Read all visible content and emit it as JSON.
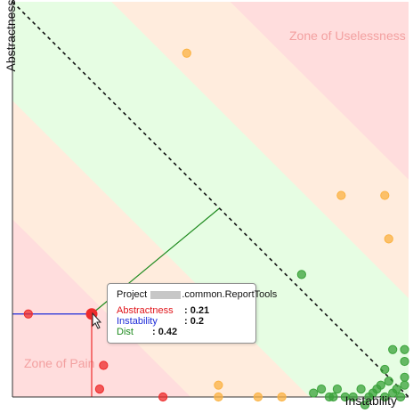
{
  "chart_data": {
    "type": "scatter",
    "xlabel": "Instability",
    "ylabel": "Abstractness",
    "xlim": [
      0,
      1
    ],
    "ylim": [
      0,
      1
    ],
    "zones": [
      {
        "name": "Zone of Uselessness",
        "color": "#ffdddd"
      },
      {
        "name": "Zone of Pain",
        "color": "#ffdddd"
      }
    ],
    "band_colors": [
      "#ffdddd",
      "#ffecdd",
      "#e6fde3",
      "#ffecdd",
      "#ffdddd"
    ],
    "main_sequence": {
      "from": [
        0,
        1
      ],
      "to": [
        1,
        0
      ]
    },
    "points": [
      {
        "x": 0.44,
        "y": 0.87,
        "color": "orange"
      },
      {
        "x": 0.83,
        "y": 0.51,
        "color": "orange"
      },
      {
        "x": 0.94,
        "y": 0.51,
        "color": "orange"
      },
      {
        "x": 0.95,
        "y": 0.4,
        "color": "orange"
      },
      {
        "x": 0.52,
        "y": 0.03,
        "color": "orange"
      },
      {
        "x": 0.52,
        "y": 0.0,
        "color": "orange"
      },
      {
        "x": 0.62,
        "y": 0.0,
        "color": "orange"
      },
      {
        "x": 0.68,
        "y": 0.0,
        "color": "orange"
      },
      {
        "x": 0.38,
        "y": 0.0,
        "color": "red"
      },
      {
        "x": 0.04,
        "y": 0.21,
        "color": "red"
      },
      {
        "x": 0.23,
        "y": 0.08,
        "color": "red"
      },
      {
        "x": 0.22,
        "y": 0.02,
        "color": "red"
      },
      {
        "x": 0.2,
        "y": 0.21,
        "color": "red",
        "selected": true
      },
      {
        "x": 0.73,
        "y": 0.31,
        "color": "green"
      },
      {
        "x": 0.76,
        "y": 0.01,
        "color": "green"
      },
      {
        "x": 0.78,
        "y": 0.02,
        "color": "green"
      },
      {
        "x": 0.8,
        "y": 0.0,
        "color": "green"
      },
      {
        "x": 0.81,
        "y": 0.0,
        "color": "green"
      },
      {
        "x": 0.82,
        "y": 0.02,
        "color": "green"
      },
      {
        "x": 0.84,
        "y": 0.0,
        "color": "green"
      },
      {
        "x": 0.86,
        "y": 0.0,
        "color": "green"
      },
      {
        "x": 0.88,
        "y": 0.02,
        "color": "green"
      },
      {
        "x": 0.89,
        "y": -0.03,
        "color": "green"
      },
      {
        "x": 0.9,
        "y": 0.0,
        "color": "green"
      },
      {
        "x": 0.91,
        "y": 0.01,
        "color": "green"
      },
      {
        "x": 0.92,
        "y": 0.02,
        "color": "green"
      },
      {
        "x": 0.93,
        "y": 0.03,
        "color": "green"
      },
      {
        "x": 0.94,
        "y": 0.0,
        "color": "green"
      },
      {
        "x": 0.95,
        "y": 0.04,
        "color": "green"
      },
      {
        "x": 0.96,
        "y": 0.01,
        "color": "green"
      },
      {
        "x": 0.97,
        "y": 0.02,
        "color": "green"
      },
      {
        "x": 0.98,
        "y": 0.0,
        "color": "green"
      },
      {
        "x": 0.99,
        "y": 0.03,
        "color": "green"
      },
      {
        "x": 0.94,
        "y": 0.07,
        "color": "green"
      },
      {
        "x": 0.96,
        "y": 0.12,
        "color": "green"
      },
      {
        "x": 0.99,
        "y": 0.09,
        "color": "green"
      },
      {
        "x": 0.99,
        "y": 0.12,
        "color": "green"
      },
      {
        "x": 0.99,
        "y": 0.05,
        "color": "green"
      }
    ],
    "highlight": {
      "abstractness": 0.21,
      "instability": 0.2,
      "dist": 0.42,
      "main_sequence_point": [
        0.5,
        0.5
      ]
    }
  },
  "tooltip": {
    "title_prefix": "Project",
    "title_suffix": ".common.ReportTools",
    "abstractness_label": "Abstractness",
    "abstractness_value": ": 0.21",
    "instability_label": "Instability",
    "instability_value": ": 0.2",
    "dist_label": "Dist",
    "dist_value": ": 0.42"
  },
  "colors": {
    "orange": "#fbb241",
    "green": "#3aa23a",
    "red": "#ee2b2b",
    "abstractness": "#e0141a",
    "instability": "#1d2bd8",
    "dist": "#1e8a1e"
  }
}
